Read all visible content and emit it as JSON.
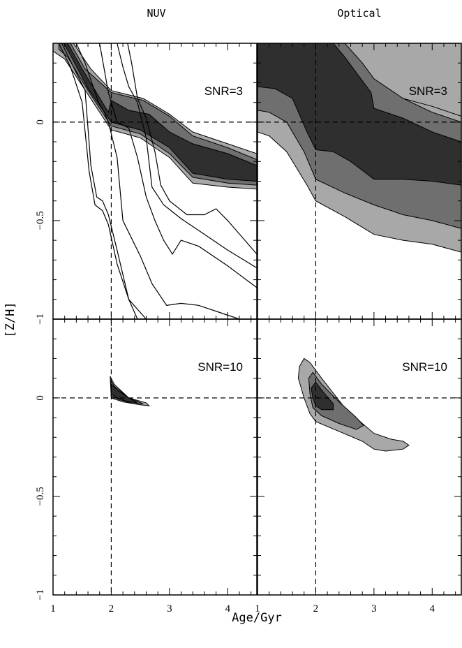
{
  "figure": {
    "column_titles": [
      "NUV",
      "Optical"
    ],
    "xlabel": "Age/Gyr",
    "ylabel": "[Z/H]",
    "xlim": [
      1,
      4.5
    ],
    "ylim": [
      -1,
      0.4
    ],
    "xticks": [
      1,
      2,
      3,
      4
    ],
    "yticks": [
      0,
      -0.5,
      -1
    ],
    "ytick_labels": [
      "0",
      "−0.5",
      "−1"
    ],
    "reference_lines": {
      "age_gyr": 2,
      "z_h": 0
    }
  },
  "colors": {
    "dark": "#2f2f2f",
    "mid": "#6f6f6f",
    "light": "#a8a8a8",
    "frame": "#000000"
  },
  "chart_data": [
    {
      "type": "contour",
      "panel": "NUV",
      "label": "SNR=3",
      "xlim": [
        1,
        4.5
      ],
      "ylim": [
        -1,
        0.4
      ],
      "filled_regions": [
        {
          "level": "light",
          "points": [
            [
              1.0,
              0.4
            ],
            [
              1.35,
              0.4
            ],
            [
              1.65,
              0.27
            ],
            [
              2.0,
              0.16
            ],
            [
              2.55,
              0.12
            ],
            [
              3.0,
              0.04
            ],
            [
              3.4,
              -0.05
            ],
            [
              4.0,
              -0.11
            ],
            [
              4.5,
              -0.16
            ],
            [
              4.5,
              -0.34
            ],
            [
              4.0,
              -0.33
            ],
            [
              3.4,
              -0.31
            ],
            [
              3.0,
              -0.18
            ],
            [
              2.5,
              -0.08
            ],
            [
              2.0,
              -0.04
            ],
            [
              1.6,
              0.14
            ],
            [
              1.2,
              0.32
            ],
            [
              1.0,
              0.36
            ]
          ]
        },
        {
          "level": "mid",
          "points": [
            [
              1.1,
              0.4
            ],
            [
              1.3,
              0.4
            ],
            [
              1.55,
              0.27
            ],
            [
              2.0,
              0.15
            ],
            [
              2.55,
              0.11
            ],
            [
              3.0,
              0.03
            ],
            [
              3.4,
              -0.07
            ],
            [
              4.0,
              -0.13
            ],
            [
              4.5,
              -0.19
            ],
            [
              4.5,
              -0.32
            ],
            [
              4.0,
              -0.31
            ],
            [
              3.4,
              -0.28
            ],
            [
              3.0,
              -0.16
            ],
            [
              2.5,
              -0.06
            ],
            [
              2.0,
              -0.02
            ],
            [
              1.6,
              0.16
            ],
            [
              1.25,
              0.33
            ],
            [
              1.1,
              0.37
            ]
          ]
        },
        {
          "level": "dark",
          "points": [
            [
              1.18,
              0.4
            ],
            [
              1.25,
              0.4
            ],
            [
              1.5,
              0.27
            ],
            [
              1.95,
              0.05
            ],
            [
              2.0,
              0.11
            ],
            [
              2.3,
              0.06
            ],
            [
              2.65,
              0.04
            ],
            [
              3.0,
              -0.05
            ],
            [
              3.4,
              -0.11
            ],
            [
              4.0,
              -0.16
            ],
            [
              4.5,
              -0.22
            ],
            [
              4.5,
              -0.3
            ],
            [
              4.0,
              -0.29
            ],
            [
              3.4,
              -0.26
            ],
            [
              3.0,
              -0.13
            ],
            [
              2.5,
              -0.04
            ],
            [
              2.0,
              0.0
            ],
            [
              1.6,
              0.17
            ],
            [
              1.3,
              0.34
            ]
          ]
        }
      ],
      "outline_curves": [
        [
          [
            1.15,
            0.4
          ],
          [
            1.35,
            0.28
          ],
          [
            1.55,
            0.16
          ],
          [
            1.65,
            -0.22
          ],
          [
            1.75,
            -0.38
          ],
          [
            1.85,
            -0.4
          ],
          [
            1.95,
            -0.47
          ],
          [
            2.1,
            -0.65
          ],
          [
            2.3,
            -0.9
          ],
          [
            2.6,
            -1.0
          ]
        ],
        [
          [
            1.1,
            0.4
          ],
          [
            1.3,
            0.28
          ],
          [
            1.5,
            0.1
          ],
          [
            1.62,
            -0.25
          ],
          [
            1.72,
            -0.42
          ],
          [
            1.85,
            -0.45
          ],
          [
            1.95,
            -0.52
          ],
          [
            2.1,
            -0.72
          ],
          [
            2.3,
            -0.9
          ],
          [
            2.45,
            -1.0
          ]
        ],
        [
          [
            1.4,
            0.4
          ],
          [
            1.55,
            0.3
          ],
          [
            1.78,
            0.1
          ],
          [
            1.88,
            0.05
          ],
          [
            1.95,
            0.0
          ],
          [
            2.1,
            -0.18
          ],
          [
            2.2,
            -0.5
          ],
          [
            2.5,
            -0.68
          ],
          [
            2.7,
            -0.82
          ],
          [
            2.95,
            -0.93
          ],
          [
            3.2,
            -0.92
          ],
          [
            3.5,
            -0.93
          ],
          [
            3.9,
            -0.97
          ],
          [
            4.2,
            -1.0
          ]
        ],
        [
          [
            1.8,
            0.4
          ],
          [
            1.95,
            0.15
          ],
          [
            2.1,
            0.0
          ],
          [
            2.3,
            -0.03
          ],
          [
            2.45,
            -0.18
          ],
          [
            2.6,
            -0.38
          ],
          [
            2.75,
            -0.5
          ],
          [
            2.9,
            -0.6
          ],
          [
            3.05,
            -0.67
          ],
          [
            3.2,
            -0.6
          ],
          [
            3.5,
            -0.63
          ],
          [
            4.0,
            -0.73
          ],
          [
            4.5,
            -0.84
          ]
        ],
        [
          [
            2.1,
            0.4
          ],
          [
            2.2,
            0.28
          ],
          [
            2.3,
            0.18
          ],
          [
            2.45,
            0.1
          ],
          [
            2.6,
            -0.08
          ],
          [
            2.7,
            -0.33
          ],
          [
            2.9,
            -0.42
          ],
          [
            3.2,
            -0.49
          ],
          [
            3.5,
            -0.55
          ],
          [
            4.0,
            -0.65
          ],
          [
            4.5,
            -0.74
          ]
        ],
        [
          [
            2.28,
            0.4
          ],
          [
            2.35,
            0.3
          ],
          [
            2.45,
            0.12
          ],
          [
            2.6,
            0.02
          ],
          [
            2.75,
            -0.15
          ],
          [
            2.85,
            -0.32
          ],
          [
            3.0,
            -0.4
          ],
          [
            3.3,
            -0.47
          ],
          [
            3.6,
            -0.47
          ],
          [
            3.8,
            -0.44
          ],
          [
            4.0,
            -0.5
          ],
          [
            4.5,
            -0.67
          ]
        ]
      ]
    },
    {
      "type": "contour",
      "panel": "Optical",
      "label": "SNR=3",
      "xlim": [
        1,
        4.5
      ],
      "ylim": [
        -1,
        0.4
      ],
      "filled_regions": [
        {
          "level": "light",
          "points": [
            [
              1.0,
              0.4
            ],
            [
              4.5,
              0.4
            ],
            [
              4.5,
              0.03
            ],
            [
              4.0,
              0.06
            ],
            [
              3.5,
              0.1
            ],
            [
              3.1,
              0.17
            ],
            [
              2.9,
              0.22
            ],
            [
              2.6,
              0.3
            ],
            [
              2.3,
              0.35
            ],
            [
              2.0,
              0.4
            ],
            [
              2.0,
              0.4
            ],
            [
              1.0,
              0.4
            ]
          ]
        },
        {
          "level": "light",
          "points": [
            [
              1.0,
              0.4
            ],
            [
              2.0,
              0.4
            ],
            [
              2.4,
              0.36
            ],
            [
              2.7,
              0.3
            ],
            [
              3.0,
              0.2
            ],
            [
              3.5,
              0.12
            ],
            [
              4.0,
              0.08
            ],
            [
              4.5,
              0.03
            ],
            [
              4.5,
              -0.66
            ],
            [
              4.0,
              -0.62
            ],
            [
              3.5,
              -0.6
            ],
            [
              3.0,
              -0.57
            ],
            [
              2.5,
              -0.48
            ],
            [
              2.0,
              -0.4
            ],
            [
              1.85,
              -0.32
            ],
            [
              1.5,
              -0.15
            ],
            [
              1.2,
              -0.07
            ],
            [
              1.0,
              -0.05
            ]
          ]
        },
        {
          "level": "mid",
          "points": [
            [
              1.0,
              0.4
            ],
            [
              2.5,
              0.4
            ],
            [
              2.8,
              0.3
            ],
            [
              3.0,
              0.22
            ],
            [
              3.5,
              0.12
            ],
            [
              4.0,
              0.05
            ],
            [
              4.5,
              0.0
            ],
            [
              4.5,
              -0.54
            ],
            [
              4.0,
              -0.5
            ],
            [
              3.5,
              -0.47
            ],
            [
              3.0,
              -0.42
            ],
            [
              2.5,
              -0.36
            ],
            [
              2.0,
              -0.29
            ],
            [
              1.8,
              -0.15
            ],
            [
              1.5,
              0.0
            ],
            [
              1.2,
              0.05
            ],
            [
              1.0,
              0.06
            ]
          ]
        },
        {
          "level": "dark",
          "points": [
            [
              1.0,
              0.4
            ],
            [
              2.3,
              0.4
            ],
            [
              2.5,
              0.33
            ],
            [
              2.7,
              0.25
            ],
            [
              2.95,
              0.15
            ],
            [
              3.0,
              0.07
            ],
            [
              3.5,
              0.02
            ],
            [
              4.0,
              -0.05
            ],
            [
              4.5,
              -0.1
            ],
            [
              4.5,
              -0.32
            ],
            [
              4.0,
              -0.3
            ],
            [
              3.5,
              -0.29
            ],
            [
              3.0,
              -0.29
            ],
            [
              2.6,
              -0.2
            ],
            [
              2.3,
              -0.15
            ],
            [
              2.0,
              -0.14
            ],
            [
              1.85,
              -0.05
            ],
            [
              1.6,
              0.12
            ],
            [
              1.3,
              0.17
            ],
            [
              1.0,
              0.18
            ]
          ]
        }
      ]
    },
    {
      "type": "contour",
      "panel": "NUV",
      "label": "SNR=10",
      "xlim": [
        1,
        4.5
      ],
      "ylim": [
        -1,
        0.4
      ],
      "filled_regions": [
        {
          "level": "light",
          "points": [
            [
              1.98,
              0.11
            ],
            [
              2.05,
              0.07
            ],
            [
              2.3,
              0.0
            ],
            [
              2.6,
              -0.025
            ],
            [
              2.65,
              -0.04
            ],
            [
              2.5,
              -0.035
            ],
            [
              2.2,
              -0.02
            ],
            [
              2.0,
              0.0
            ]
          ]
        },
        {
          "level": "mid",
          "points": [
            [
              1.99,
              0.09
            ],
            [
              2.05,
              0.06
            ],
            [
              2.3,
              0.0
            ],
            [
              2.55,
              -0.03
            ],
            [
              2.4,
              -0.03
            ],
            [
              2.15,
              -0.01
            ],
            [
              2.0,
              0.01
            ]
          ]
        },
        {
          "level": "dark",
          "points": [
            [
              2.0,
              0.07
            ],
            [
              2.1,
              0.04
            ],
            [
              2.3,
              0.0
            ],
            [
              2.45,
              -0.025
            ],
            [
              2.3,
              -0.02
            ],
            [
              2.1,
              0.0
            ],
            [
              2.0,
              0.02
            ]
          ]
        }
      ]
    },
    {
      "type": "contour",
      "panel": "Optical",
      "label": "SNR=10",
      "xlim": [
        1,
        4.5
      ],
      "ylim": [
        -1,
        0.4
      ],
      "filled_regions": [
        {
          "level": "light",
          "points": [
            [
              1.72,
              0.16
            ],
            [
              1.8,
              0.2
            ],
            [
              1.9,
              0.18
            ],
            [
              2.1,
              0.1
            ],
            [
              2.5,
              -0.05
            ],
            [
              2.8,
              -0.13
            ],
            [
              3.0,
              -0.18
            ],
            [
              3.3,
              -0.21
            ],
            [
              3.5,
              -0.22
            ],
            [
              3.6,
              -0.24
            ],
            [
              3.5,
              -0.26
            ],
            [
              3.2,
              -0.27
            ],
            [
              3.0,
              -0.26
            ],
            [
              2.8,
              -0.22
            ],
            [
              2.4,
              -0.17
            ],
            [
              2.0,
              -0.12
            ],
            [
              1.9,
              -0.08
            ],
            [
              1.8,
              0.0
            ],
            [
              1.7,
              0.1
            ]
          ]
        },
        {
          "level": "mid",
          "points": [
            [
              1.88,
              0.1
            ],
            [
              1.95,
              0.13
            ],
            [
              2.1,
              0.07
            ],
            [
              2.4,
              -0.02
            ],
            [
              2.7,
              -0.1
            ],
            [
              2.82,
              -0.14
            ],
            [
              2.7,
              -0.16
            ],
            [
              2.4,
              -0.13
            ],
            [
              2.1,
              -0.09
            ],
            [
              1.95,
              -0.05
            ],
            [
              1.9,
              0.02
            ]
          ]
        },
        {
          "level": "dark",
          "points": [
            [
              1.92,
              0.05
            ],
            [
              2.0,
              0.08
            ],
            [
              2.1,
              0.04
            ],
            [
              2.3,
              -0.03
            ],
            [
              2.3,
              -0.06
            ],
            [
              2.1,
              -0.06
            ],
            [
              2.0,
              -0.04
            ],
            [
              1.95,
              0.0
            ]
          ]
        }
      ]
    }
  ]
}
